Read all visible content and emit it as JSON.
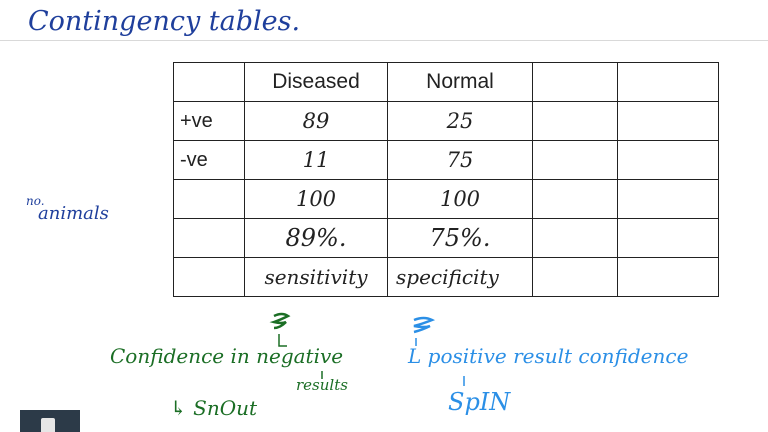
{
  "note_title": "Contingency tables.",
  "table": {
    "headers": [
      "",
      "Diseased",
      "Normal",
      "",
      ""
    ],
    "rows": [
      {
        "label": "+ve",
        "diseased": "89",
        "normal": "25"
      },
      {
        "label": "-ve",
        "diseased": "11",
        "normal": "75"
      },
      {
        "label": "",
        "diseased": "100",
        "normal": "100"
      },
      {
        "label": "",
        "diseased": "89%.",
        "normal": "75%."
      },
      {
        "label": "",
        "diseased": "sensitivity",
        "normal": "specificity"
      }
    ]
  },
  "side_note": {
    "superscript": "no.",
    "text": "animals"
  },
  "annotations": {
    "sensitivity_meaning": "Confidence in negative",
    "sensitivity_meaning_2": "results",
    "sensitivity_mnemonic": "↳ SnOut",
    "specificity_meaning": "L positive result confidence",
    "specificity_mnemonic": "SpIN"
  },
  "colors": {
    "navy": "#1f3f9c",
    "green": "#1f8a2c",
    "red": "#d0183f",
    "blue": "#2b8fe6",
    "dark_green": "#1b6e25",
    "toolbar": "#2c3a48"
  },
  "toolbar": {
    "icon": "tool-icon"
  }
}
